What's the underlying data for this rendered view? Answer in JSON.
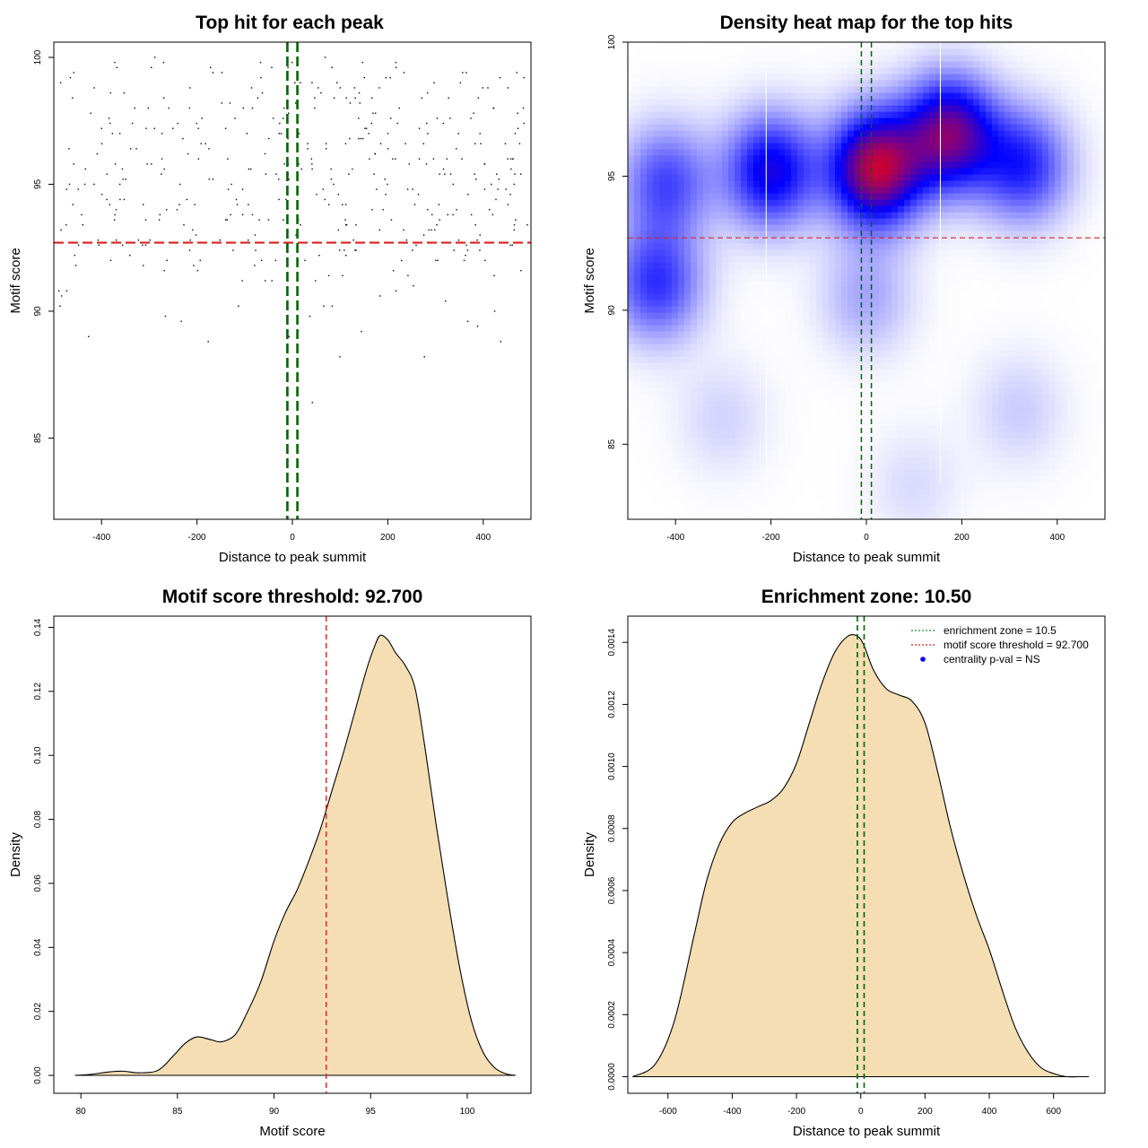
{
  "chart_data": [
    {
      "id": "top-hits",
      "type": "scatter",
      "title": "Top hit for each peak",
      "xlabel": "Distance to peak summit",
      "ylabel": "Motif score",
      "xlim": [
        -500,
        500
      ],
      "ylim": [
        81.8,
        100.6
      ],
      "xticks": [
        -400,
        -200,
        0,
        200,
        400
      ],
      "yticks": [
        85,
        90,
        95,
        100
      ],
      "xtick_labels": [
        "-400",
        "-200",
        "0",
        "200",
        "400"
      ],
      "ytick_labels": [
        "85",
        "90",
        "95",
        "100"
      ],
      "hline": {
        "y": 92.7,
        "color": "#dd2020"
      },
      "vlines": [
        {
          "x": -10.5,
          "color": "#006400"
        },
        {
          "x": 10.5,
          "color": "#006400"
        }
      ],
      "point_count": 420,
      "point_color": "#000000"
    },
    {
      "id": "density-heatmap",
      "type": "heatmap",
      "title": "Density heat map for the top hits",
      "xlabel": "Distance to peak summit",
      "ylabel": "Motif score",
      "xlim": [
        -500,
        500
      ],
      "ylim": [
        82.2,
        100.0
      ],
      "xticks": [
        -400,
        -200,
        0,
        200,
        400
      ],
      "yticks": [
        85,
        90,
        95,
        100
      ],
      "xtick_labels": [
        "-400",
        "-200",
        "0",
        "200",
        "400"
      ],
      "ytick_labels": [
        "85",
        "90",
        "95",
        "100"
      ],
      "colors": {
        "low": "#ffffff",
        "mid": "#0000ff",
        "high": "#ff0000"
      },
      "hline": {
        "y": 92.7,
        "color": "#dd2020"
      },
      "vlines": [
        {
          "x": -10.5,
          "color": "#006400"
        },
        {
          "x": 10.5,
          "color": "#006400"
        }
      ],
      "white_lines_x": [
        -210,
        155
      ],
      "density_components": [
        {
          "x": 20,
          "y": 95.3,
          "w": 0.6
        },
        {
          "x": 175,
          "y": 96.6,
          "w": 0.5
        },
        {
          "x": -200,
          "y": 95.2,
          "w": 0.38
        },
        {
          "x": 330,
          "y": 95.4,
          "w": 0.3
        },
        {
          "x": -420,
          "y": 94.8,
          "w": 0.25
        },
        {
          "x": -440,
          "y": 91.0,
          "w": 0.28
        },
        {
          "x": 0,
          "y": 90.5,
          "w": 0.12
        },
        {
          "x": -300,
          "y": 86.0,
          "w": 0.06
        },
        {
          "x": 320,
          "y": 86.3,
          "w": 0.07
        },
        {
          "x": 100,
          "y": 83.5,
          "w": 0.05
        }
      ]
    },
    {
      "id": "score-density",
      "type": "area",
      "title": "Motif score threshold: 92.700",
      "xlabel": "Motif score",
      "ylabel": "Density",
      "xlim": [
        78.6,
        103.3
      ],
      "ylim": [
        -0.0056,
        0.1435
      ],
      "xticks": [
        80,
        85,
        90,
        95,
        100
      ],
      "yticks": [
        0.0,
        0.02,
        0.04,
        0.06,
        0.08,
        0.1,
        0.12,
        0.14
      ],
      "xtick_labels": [
        "80",
        "85",
        "90",
        "95",
        "100"
      ],
      "ytick_labels": [
        "0.00",
        "0.02",
        "0.04",
        "0.06",
        "0.08",
        "0.10",
        "0.12",
        "0.14"
      ],
      "fill_color": "#f5deb3",
      "vline": {
        "x": 92.7,
        "color": "#dd2020"
      },
      "x": [
        79.7,
        80.5,
        81.5,
        82.2,
        83.0,
        84.0,
        84.8,
        85.4,
        86.0,
        86.7,
        87.3,
        88.0,
        88.6,
        89.3,
        90.0,
        90.6,
        91.2,
        91.8,
        92.4,
        93.0,
        93.6,
        94.2,
        94.8,
        95.2,
        95.5,
        95.9,
        96.3,
        96.8,
        97.3,
        97.8,
        98.4,
        99.0,
        99.6,
        100.2,
        100.8,
        101.4,
        102.0,
        102.5
      ],
      "y": [
        0.0,
        0.0003,
        0.0011,
        0.0013,
        0.0008,
        0.0016,
        0.0062,
        0.01,
        0.012,
        0.0112,
        0.0105,
        0.0128,
        0.0195,
        0.029,
        0.042,
        0.051,
        0.058,
        0.067,
        0.077,
        0.089,
        0.101,
        0.114,
        0.127,
        0.134,
        0.1375,
        0.136,
        0.132,
        0.128,
        0.121,
        0.103,
        0.078,
        0.055,
        0.034,
        0.0175,
        0.0075,
        0.0025,
        0.0005,
        0.0
      ]
    },
    {
      "id": "distance-density",
      "type": "area",
      "title": "Enrichment zone: 10.50",
      "xlabel": "Distance to peak summit",
      "ylabel": "Density",
      "xlim": [
        -725,
        760
      ],
      "ylim": [
        -5.35e-05,
        0.0014845
      ],
      "xticks": [
        -600,
        -400,
        -200,
        0,
        200,
        400,
        600
      ],
      "yticks": [
        0.0,
        0.0002,
        0.0004,
        0.0006,
        0.0008,
        0.001,
        0.0012,
        0.0014
      ],
      "xtick_labels": [
        "-600",
        "-400",
        "-200",
        "0",
        "200",
        "400",
        "600"
      ],
      "ytick_labels": [
        "0.0000",
        "0.0002",
        "0.0004",
        "0.0006",
        "0.0008",
        "0.0010",
        "0.0012",
        "0.0014"
      ],
      "fill_color": "#f5deb3",
      "vlines": [
        {
          "x": -10.5,
          "color": "#006400"
        },
        {
          "x": 10.5,
          "color": "#006400"
        }
      ],
      "x": [
        -710,
        -640,
        -580,
        -520,
        -480,
        -440,
        -400,
        -360,
        -320,
        -280,
        -240,
        -200,
        -160,
        -120,
        -80,
        -40,
        -10,
        10,
        40,
        80,
        120,
        160,
        200,
        240,
        280,
        320,
        360,
        400,
        440,
        480,
        520,
        560,
        600,
        640,
        680,
        710
      ],
      "y": [
        0.0,
        4e-05,
        0.00018,
        0.00045,
        0.00063,
        0.00075,
        0.00082,
        0.00085,
        0.00087,
        0.00089,
        0.00093,
        0.00101,
        0.00114,
        0.00127,
        0.00137,
        0.00142,
        0.00142,
        0.00139,
        0.00131,
        0.00125,
        0.00123,
        0.00121,
        0.00114,
        0.00098,
        0.0008,
        0.00065,
        0.00052,
        0.00041,
        0.00028,
        0.00016,
        8e-05,
        3e-05,
        1e-05,
        0.0,
        0.0,
        0.0
      ],
      "legend": {
        "position": "top-right",
        "entries": [
          {
            "label": "enrichment zone = 10.5",
            "color": "#228b22",
            "symbol": "dotted-line"
          },
          {
            "label": "motif score threshold = 92.700",
            "color": "#dd2020",
            "symbol": "dotted-line"
          },
          {
            "label": "centrality p-val = NS",
            "color": "#0000ff",
            "symbol": "dot"
          }
        ]
      }
    }
  ]
}
